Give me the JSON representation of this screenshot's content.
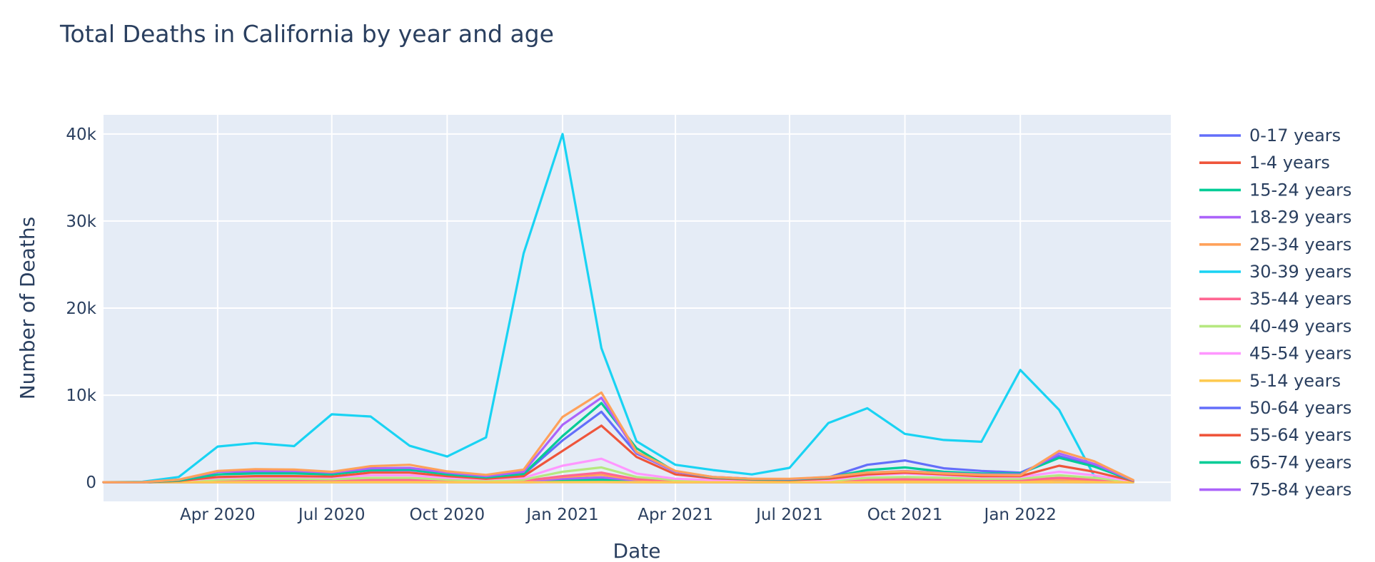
{
  "chart_data": {
    "type": "line",
    "title": "Total Deaths in California by year and age",
    "xlabel": "Date",
    "ylabel": "Number of Deaths",
    "grid": true,
    "legend_position": "right",
    "xlim": [
      "2020-01-01",
      "2022-05-01"
    ],
    "ylim": [
      -2200,
      42200
    ],
    "x": [
      "2020-01-01",
      "2020-02-01",
      "2020-03-01",
      "2020-04-01",
      "2020-05-01",
      "2020-06-01",
      "2020-07-01",
      "2020-08-01",
      "2020-09-01",
      "2020-10-01",
      "2020-11-01",
      "2020-12-01",
      "2021-01-01",
      "2021-02-01",
      "2021-03-01",
      "2021-04-01",
      "2021-05-01",
      "2021-06-01",
      "2021-07-01",
      "2021-08-01",
      "2021-09-01",
      "2021-10-01",
      "2021-11-01",
      "2021-12-01",
      "2022-01-01",
      "2022-02-01",
      "2022-03-01",
      "2022-04-01"
    ],
    "x_ticks": [
      {
        "value": "2020-04-01",
        "label": "Apr 2020"
      },
      {
        "value": "2020-07-01",
        "label": "Jul 2020"
      },
      {
        "value": "2020-10-01",
        "label": "Oct 2020"
      },
      {
        "value": "2021-01-01",
        "label": "Jan 2021"
      },
      {
        "value": "2021-04-01",
        "label": "Apr 2021"
      },
      {
        "value": "2021-07-01",
        "label": "Jul 2021"
      },
      {
        "value": "2021-10-01",
        "label": "Oct 2021"
      },
      {
        "value": "2022-01-01",
        "label": "Jan 2022"
      }
    ],
    "y_ticks": [
      {
        "value": 0,
        "label": "0"
      },
      {
        "value": 10000,
        "label": "10k"
      },
      {
        "value": 20000,
        "label": "20k"
      },
      {
        "value": 30000,
        "label": "30k"
      },
      {
        "value": 40000,
        "label": "40k"
      }
    ],
    "series": [
      {
        "name": "0-17 years",
        "color": "#636efa",
        "values": [
          0,
          0,
          5,
          10,
          15,
          15,
          15,
          20,
          20,
          15,
          10,
          15,
          40,
          60,
          25,
          10,
          5,
          5,
          5,
          5,
          10,
          15,
          10,
          10,
          10,
          20,
          15,
          2
        ]
      },
      {
        "name": "1-4 years",
        "color": "#ef553b",
        "values": [
          0,
          0,
          2,
          3,
          3,
          3,
          3,
          5,
          5,
          3,
          3,
          3,
          10,
          15,
          5,
          3,
          2,
          2,
          2,
          2,
          3,
          3,
          3,
          3,
          3,
          5,
          3,
          1
        ]
      },
      {
        "name": "15-24 years",
        "color": "#00cc96",
        "values": [
          0,
          0,
          20,
          60,
          90,
          90,
          80,
          100,
          100,
          70,
          50,
          70,
          220,
          300,
          120,
          50,
          30,
          20,
          20,
          30,
          60,
          80,
          60,
          50,
          50,
          80,
          60,
          10
        ]
      },
      {
        "name": "18-29 years",
        "color": "#ab63fa",
        "values": [
          0,
          0,
          30,
          100,
          150,
          150,
          130,
          180,
          180,
          120,
          80,
          120,
          400,
          550,
          200,
          80,
          50,
          40,
          40,
          50,
          100,
          150,
          100,
          80,
          80,
          150,
          100,
          15
        ]
      },
      {
        "name": "25-34 years",
        "color": "#ffa15a",
        "values": [
          0,
          0,
          50,
          200,
          250,
          250,
          220,
          300,
          300,
          200,
          150,
          200,
          600,
          850,
          300,
          120,
          80,
          60,
          60,
          80,
          200,
          250,
          200,
          150,
          150,
          300,
          200,
          30
        ]
      },
      {
        "name": "30-39 years",
        "color": "#19d3f3",
        "values": [
          0,
          50,
          600,
          4100,
          4500,
          4150,
          7800,
          7550,
          4200,
          2950,
          5150,
          26300,
          40000,
          15400,
          4700,
          2000,
          1400,
          900,
          1650,
          6800,
          8500,
          5550,
          4850,
          4650,
          12900,
          8300,
          700,
          0
        ]
      },
      {
        "name": "35-44 years",
        "color": "#ff6692",
        "values": [
          0,
          0,
          50,
          150,
          200,
          200,
          180,
          250,
          250,
          150,
          100,
          150,
          700,
          1100,
          350,
          150,
          100,
          70,
          70,
          100,
          300,
          350,
          300,
          250,
          250,
          500,
          300,
          40
        ]
      },
      {
        "name": "40-49 years",
        "color": "#b6e880",
        "values": [
          0,
          0,
          100,
          300,
          400,
          400,
          350,
          500,
          500,
          300,
          200,
          300,
          1200,
          1700,
          600,
          250,
          150,
          100,
          100,
          150,
          500,
          600,
          500,
          400,
          400,
          800,
          500,
          60
        ]
      },
      {
        "name": "45-54 years",
        "color": "#ff97ff",
        "values": [
          0,
          0,
          150,
          500,
          600,
          600,
          550,
          800,
          800,
          500,
          350,
          500,
          1900,
          2700,
          1000,
          400,
          250,
          150,
          150,
          250,
          800,
          1000,
          800,
          600,
          600,
          1200,
          800,
          100
        ]
      },
      {
        "name": "5-14 years",
        "color": "#fecb52",
        "values": [
          0,
          0,
          2,
          5,
          5,
          5,
          5,
          8,
          8,
          5,
          3,
          5,
          15,
          20,
          8,
          3,
          2,
          2,
          2,
          2,
          5,
          5,
          5,
          3,
          3,
          8,
          5,
          1
        ]
      },
      {
        "name": "50-64 years",
        "color": "#636efa",
        "values": [
          0,
          0,
          200,
          900,
          1100,
          1050,
          1000,
          1350,
          1400,
          950,
          550,
          900,
          4800,
          8100,
          3300,
          1200,
          600,
          400,
          300,
          550,
          2000,
          2500,
          1600,
          1300,
          1100,
          3000,
          1900,
          200
        ]
      },
      {
        "name": "55-64 years",
        "color": "#ef553b",
        "values": [
          0,
          0,
          150,
          600,
          700,
          700,
          650,
          1100,
          1100,
          700,
          400,
          700,
          3600,
          6500,
          2900,
          900,
          450,
          300,
          250,
          400,
          900,
          1100,
          900,
          700,
          700,
          1900,
          1200,
          150
        ]
      },
      {
        "name": "65-74 years",
        "color": "#00cc96",
        "values": [
          0,
          0,
          200,
          900,
          1000,
          1000,
          900,
          1400,
          1450,
          900,
          550,
          950,
          5300,
          9100,
          3900,
          1200,
          550,
          350,
          300,
          550,
          1400,
          1700,
          1200,
          1000,
          1000,
          2800,
          1800,
          200
        ]
      },
      {
        "name": "75-84 years",
        "color": "#ab63fa",
        "values": [
          0,
          0,
          300,
          1200,
          1300,
          1300,
          1100,
          1600,
          1650,
          1100,
          700,
          1200,
          6600,
          9700,
          3400,
          1200,
          600,
          400,
          350,
          600,
          1100,
          1300,
          1050,
          900,
          900,
          3300,
          2100,
          200
        ]
      },
      {
        "name": "",
        "color": "#ffa15a",
        "values": [
          0,
          0,
          300,
          1300,
          1500,
          1450,
          1200,
          1850,
          2000,
          1250,
          850,
          1450,
          7500,
          10300,
          3500,
          1300,
          600,
          400,
          400,
          600,
          1100,
          1250,
          1000,
          850,
          800,
          3600,
          2400,
          250
        ]
      }
    ]
  }
}
